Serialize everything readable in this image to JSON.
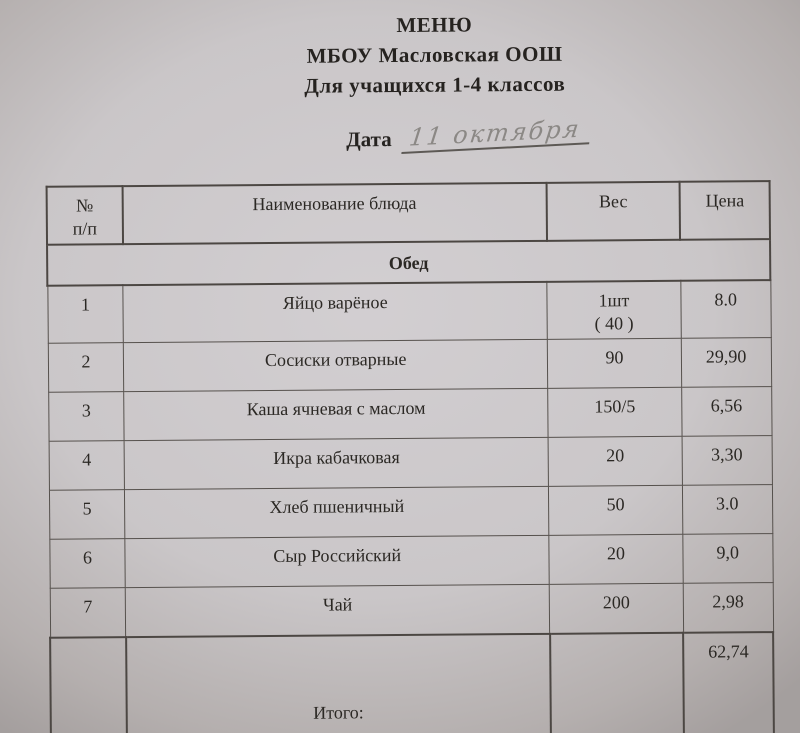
{
  "document": {
    "title_lines": {
      "line1": "МЕНЮ",
      "line2": "МБОУ Масловская ООШ",
      "line3": "Для учащихся 1-4 классов"
    },
    "date": {
      "label": "Дата",
      "value_handwritten": "11 октября"
    },
    "table": {
      "headers": {
        "num": "№\nп/п",
        "dish": "Наименование блюда",
        "weight": "Вес",
        "price": "Цена"
      },
      "section_title": "Обед",
      "rows": [
        {
          "num": "1",
          "dish": "Яйцо варёное",
          "weight": "1шт\n( 40 )",
          "price": "8.0"
        },
        {
          "num": "2",
          "dish": "Сосиски отварные",
          "weight": "90",
          "price": "29,90"
        },
        {
          "num": "3",
          "dish": "Каша ячневая с маслом",
          "weight": "150/5",
          "price": "6,56"
        },
        {
          "num": "4",
          "dish": "Икра кабачковая",
          "weight": "20",
          "price": "3,30"
        },
        {
          "num": "5",
          "dish": "Хлеб пшеничный",
          "weight": "50",
          "price": "3.0"
        },
        {
          "num": "6",
          "dish": "Сыр Российский",
          "weight": "20",
          "price": "9,0"
        },
        {
          "num": "7",
          "dish": "Чай",
          "weight": "200",
          "price": "2,98"
        }
      ],
      "total": {
        "label": "Итого:",
        "price": "62,74"
      }
    },
    "colors": {
      "paper": "#c9c6c7",
      "paper_edge": "#a09b99",
      "ink": "#2b2824",
      "pencil": "#8b8885",
      "table_border": "#56514d"
    }
  }
}
